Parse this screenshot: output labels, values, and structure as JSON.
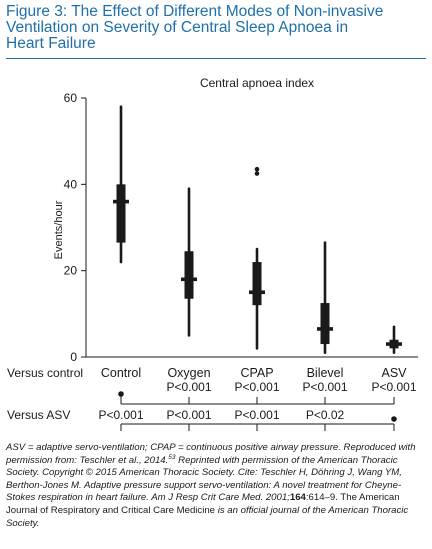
{
  "figure": {
    "title_line1": "Figure 3: The Effect of Different Modes of Non-invasive",
    "title_line2": "Ventilation on Severity of Central Sleep Apnoea in",
    "title_line3": "Heart Failure"
  },
  "chart_data": {
    "type": "box",
    "title": "Central apnoea index",
    "ylabel": "Events/hour",
    "ylim": [
      0,
      60
    ],
    "yticks": [
      "0",
      "20",
      "40",
      "60"
    ],
    "categories": [
      "Control",
      "Oxygen",
      "CPAP",
      "Bilevel",
      "ASV"
    ],
    "boxes": [
      {
        "whisker_low": 22,
        "q1": 26.5,
        "median": 36,
        "q3": 40,
        "whisker_high": 58,
        "outliers": []
      },
      {
        "whisker_low": 5,
        "q1": 13.5,
        "median": 18,
        "q3": 24.5,
        "whisker_high": 39,
        "outliers": []
      },
      {
        "whisker_low": 2,
        "q1": 12,
        "median": 15,
        "q3": 22,
        "whisker_high": 25,
        "outliers": [
          42.5,
          43.5
        ]
      },
      {
        "whisker_low": 1,
        "q1": 3,
        "median": 6.5,
        "q3": 12.5,
        "whisker_high": 26.5,
        "outliers": []
      },
      {
        "whisker_low": 1,
        "q1": 2,
        "median": 3,
        "q3": 4,
        "whisker_high": 7,
        "outliers": []
      }
    ],
    "versus_control": {
      "label": "Versus control",
      "pvalues": [
        "",
        "P<0.001",
        "P<0.001",
        "P<0.001",
        "P<0.001"
      ]
    },
    "versus_asv": {
      "label": "Versus ASV",
      "pvalues": [
        "P<0.001",
        "P<0.001",
        "P<0.001",
        "P<0.02",
        ""
      ]
    },
    "box_color": "#1a1a1a"
  },
  "caption": {
    "part1": "ASV = adaptive servo-ventilation; CPAP = continuous positive airway pressure. Reproduced with permission from: Teschler et al., 2014.",
    "ref": "53",
    "part2": " Reprinted with permission of the American Thoracic Society. Copyright © 2015 American Thoracic Society. Cite: Teschler H, Döhring J, Wang YM, Berthon-Jones M. Adaptive pressure support servo-ventilation: A novel treatment for Cheyne-Stokes respiration in heart failure. Am J Resp Crit Care Med. 2001;",
    "volume": "164",
    "part3": ":614–9.",
    "part4": " The American Journal of Respiratory and Critical Care Medicine ",
    "part5": "is an official journal of the American Thoracic Society."
  },
  "colors": {
    "title": "#1f6fa8",
    "text": "#1a1a1a"
  }
}
